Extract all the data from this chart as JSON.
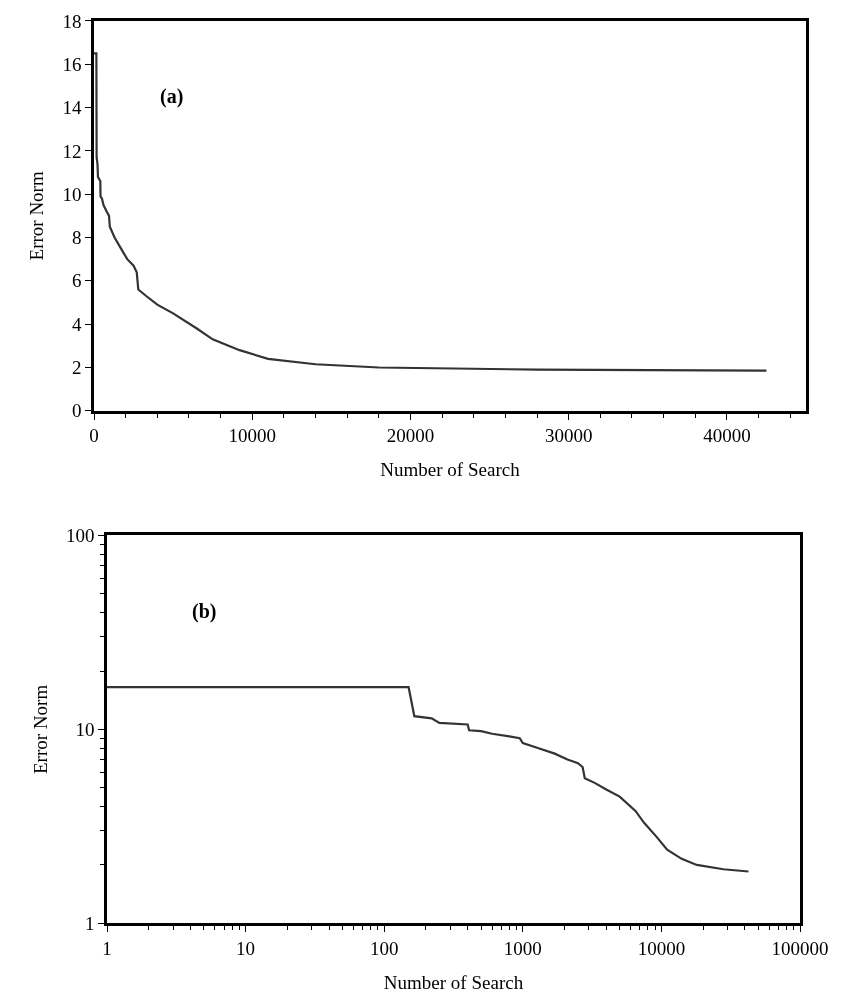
{
  "chart_data": [
    {
      "type": "line",
      "xlabel": "Number of Search",
      "ylabel": "Error Norm",
      "annotations": [
        "(a)"
      ],
      "xlim": [
        0,
        45000
      ],
      "xticks": [
        0,
        10000,
        20000,
        30000,
        40000
      ],
      "ylim": [
        0,
        18
      ],
      "yticks": [
        0,
        2,
        4,
        6,
        8,
        10,
        12,
        14,
        16,
        18
      ],
      "marker": "none",
      "line_style": "solid",
      "series": [
        {
          "color": "#333333",
          "x": [
            1,
            150,
            165,
            220,
            250,
            400,
            410,
            500,
            600,
            800,
            950,
            1000,
            1300,
            1700,
            2100,
            2500,
            2700,
            2800,
            3300,
            4000,
            5000,
            6500,
            7500,
            9200,
            11000,
            14000,
            18000,
            28000,
            42500
          ],
          "values": [
            16.5,
            16.5,
            11.7,
            11.4,
            10.8,
            10.6,
            9.9,
            9.8,
            9.5,
            9.2,
            9.0,
            8.5,
            8.0,
            7.5,
            7.0,
            6.7,
            6.4,
            5.6,
            5.3,
            4.9,
            4.5,
            3.8,
            3.3,
            2.8,
            2.4,
            2.15,
            2.0,
            1.9,
            1.85
          ]
        }
      ]
    },
    {
      "type": "line",
      "xlabel": "Number of Search",
      "ylabel": "Error Norm",
      "annotations": [
        "(b)"
      ],
      "log": "xy",
      "xlim": [
        1,
        100000
      ],
      "xticks": [
        1,
        10,
        100,
        1000,
        10000,
        100000
      ],
      "ylim": [
        1,
        100
      ],
      "yticks": [
        1,
        10,
        100
      ],
      "marker": "none",
      "line_style": "solid",
      "series": [
        {
          "color": "#333333",
          "x": [
            1,
            150,
            165,
            220,
            250,
            400,
            410,
            500,
            600,
            800,
            950,
            1000,
            1300,
            1700,
            2100,
            2500,
            2700,
            2800,
            3300,
            4000,
            5000,
            6500,
            7500,
            9200,
            11000,
            14000,
            18000,
            28000,
            42500
          ],
          "values": [
            16.5,
            16.5,
            11.7,
            11.4,
            10.8,
            10.6,
            9.9,
            9.8,
            9.5,
            9.2,
            9.0,
            8.5,
            8.0,
            7.5,
            7.0,
            6.7,
            6.4,
            5.6,
            5.3,
            4.9,
            4.5,
            3.8,
            3.3,
            2.8,
            2.4,
            2.15,
            2.0,
            1.9,
            1.85
          ]
        }
      ]
    }
  ]
}
